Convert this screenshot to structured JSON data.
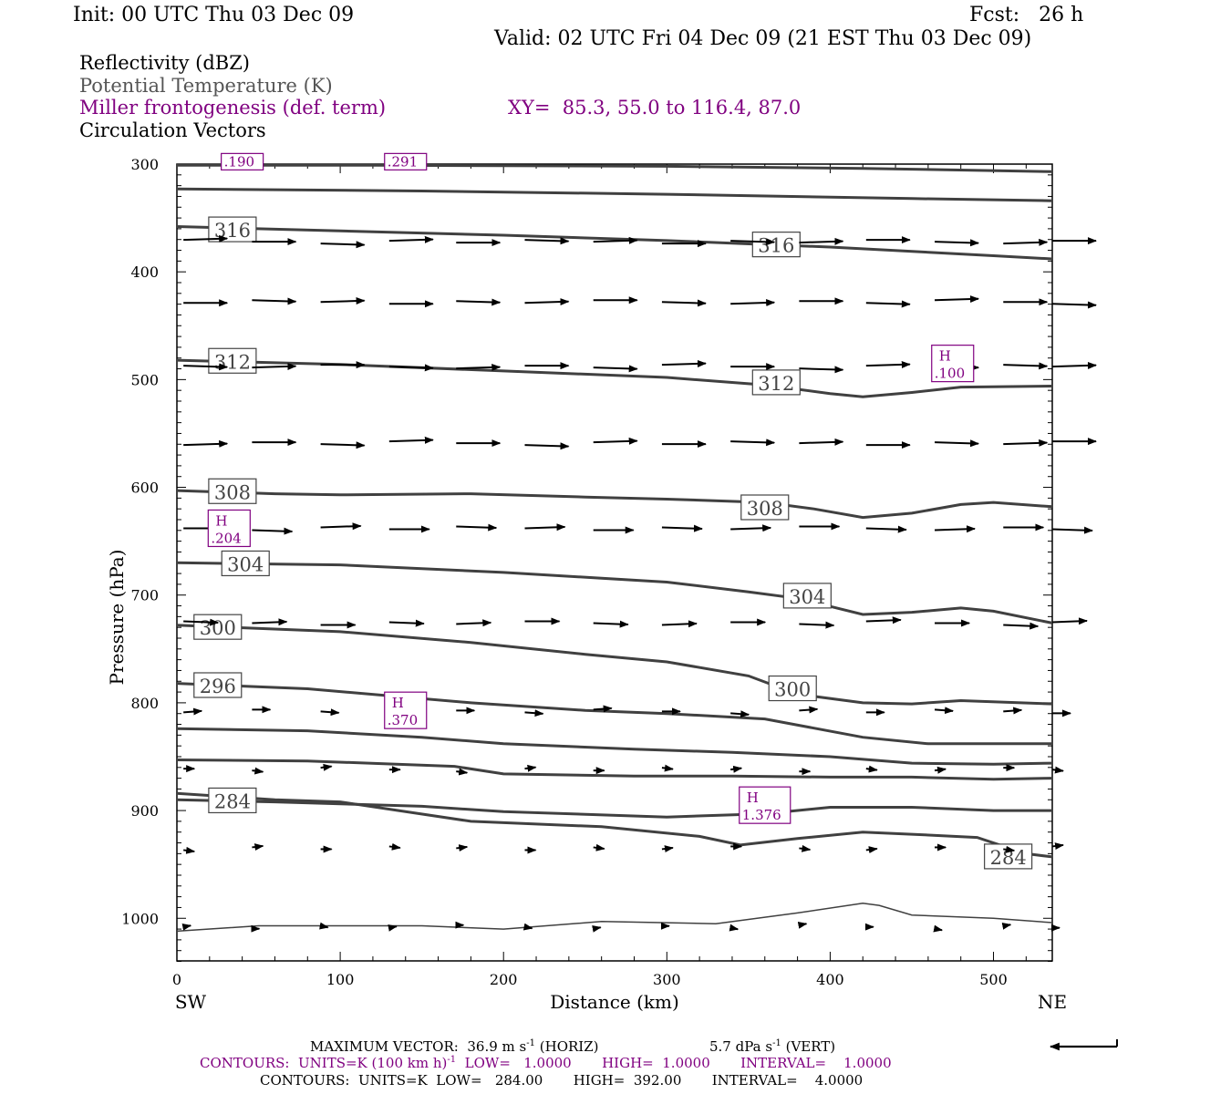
{
  "header": {
    "init": "Init: 00 UTC Thu 03 Dec 09",
    "fcst": "Fcst:   26 h",
    "valid": "Valid: 02 UTC Fri 04 Dec 09 (21 EST Thu 03 Dec 09)"
  },
  "legend": {
    "reflectivity": "Reflectivity (dBZ)",
    "theta": "Potential Temperature (K)",
    "frontogenesis": "Miller frontogenesis (def. term)",
    "xy": "XY=  85.3, 55.0 to 116.4, 87.0",
    "vectors": "Circulation Vectors"
  },
  "footer": {
    "max_vector": "MAXIMUM VECTOR:  36.9 m s",
    "max_vector_horiz": "(HORIZ)",
    "max_vector_vert": "5.7 dPa s",
    "max_vector_vert_tail": "(VERT)",
    "sup_minus1": "-1",
    "contours_front_a": "CONTOURS:  UNITS=K (100 km h)",
    "contours_front_b": "LOW=   1.0000       HIGH=  1.0000       INTERVAL=    1.0000",
    "contours_theta": "CONTOURS:  UNITS=K  LOW=   284.00       HIGH=  392.00       INTERVAL=    4.0000"
  },
  "colors": {
    "theta": "#404040",
    "frontogenesis": "#800080",
    "vectors": "#000000"
  },
  "chart_data": {
    "type": "cross-section",
    "xlabel": "Distance (km)",
    "ylabel": "Pressure (hPa)",
    "xlim": [
      0,
      536
    ],
    "ylim": [
      1040,
      300
    ],
    "x_ticks": [
      0,
      100,
      200,
      300,
      400,
      500
    ],
    "y_ticks": [
      300,
      400,
      500,
      600,
      700,
      800,
      900,
      1000
    ],
    "x_end_labels": {
      "left": "SW",
      "right": "NE"
    },
    "theta_contours": [
      {
        "label": "",
        "points": [
          [
            0,
            301
          ],
          [
            120,
            301
          ],
          [
            300,
            302
          ],
          [
            420,
            304
          ],
          [
            536,
            307
          ]
        ]
      },
      {
        "label": "",
        "points": [
          [
            0,
            323
          ],
          [
            150,
            325
          ],
          [
            300,
            328
          ],
          [
            450,
            332
          ],
          [
            536,
            334
          ]
        ]
      },
      {
        "label": "316",
        "points": [
          [
            0,
            358
          ],
          [
            100,
            362
          ],
          [
            200,
            366
          ],
          [
            300,
            371
          ],
          [
            400,
            377
          ],
          [
            500,
            385
          ],
          [
            536,
            388
          ]
        ]
      },
      {
        "label": "312",
        "points": [
          [
            0,
            482
          ],
          [
            100,
            486
          ],
          [
            200,
            492
          ],
          [
            300,
            498
          ],
          [
            360,
            505
          ],
          [
            400,
            513
          ],
          [
            420,
            516
          ],
          [
            450,
            512
          ],
          [
            480,
            507
          ],
          [
            536,
            506
          ]
        ]
      },
      {
        "label": "308",
        "points": [
          [
            0,
            603
          ],
          [
            60,
            606
          ],
          [
            100,
            607
          ],
          [
            180,
            606
          ],
          [
            250,
            609
          ],
          [
            300,
            611
          ],
          [
            360,
            614
          ],
          [
            390,
            620
          ],
          [
            420,
            628
          ],
          [
            450,
            624
          ],
          [
            480,
            616
          ],
          [
            500,
            614
          ],
          [
            536,
            618
          ]
        ]
      },
      {
        "label": "304",
        "points": [
          [
            0,
            670
          ],
          [
            100,
            672
          ],
          [
            200,
            679
          ],
          [
            300,
            688
          ],
          [
            350,
            697
          ],
          [
            380,
            703
          ],
          [
            420,
            718
          ],
          [
            450,
            716
          ],
          [
            480,
            712
          ],
          [
            500,
            715
          ],
          [
            536,
            726
          ]
        ]
      },
      {
        "label": "300",
        "points": [
          [
            0,
            728
          ],
          [
            100,
            734
          ],
          [
            180,
            744
          ],
          [
            250,
            755
          ],
          [
            300,
            762
          ],
          [
            350,
            775
          ],
          [
            380,
            792
          ],
          [
            420,
            800
          ],
          [
            450,
            801
          ],
          [
            480,
            798
          ],
          [
            536,
            801
          ]
        ]
      },
      {
        "label": "296",
        "points": [
          [
            0,
            782
          ],
          [
            80,
            787
          ],
          [
            180,
            800
          ],
          [
            250,
            807
          ],
          [
            300,
            810
          ],
          [
            360,
            815
          ],
          [
            420,
            832
          ],
          [
            460,
            838
          ],
          [
            536,
            838
          ]
        ]
      },
      {
        "label": "",
        "points": [
          [
            0,
            824
          ],
          [
            80,
            826
          ],
          [
            150,
            832
          ],
          [
            200,
            838
          ],
          [
            280,
            843
          ],
          [
            340,
            846
          ],
          [
            400,
            850
          ],
          [
            450,
            856
          ],
          [
            500,
            857
          ],
          [
            536,
            856
          ]
        ]
      },
      {
        "label": "",
        "points": [
          [
            0,
            853
          ],
          [
            80,
            854
          ],
          [
            170,
            859
          ],
          [
            200,
            866
          ],
          [
            280,
            868
          ],
          [
            340,
            868
          ],
          [
            400,
            869
          ],
          [
            450,
            869
          ],
          [
            500,
            871
          ],
          [
            536,
            870
          ]
        ]
      },
      {
        "label": "284",
        "points": [
          [
            0,
            890
          ],
          [
            60,
            892
          ],
          [
            150,
            896
          ],
          [
            200,
            901
          ],
          [
            300,
            906
          ],
          [
            360,
            903
          ],
          [
            400,
            897
          ],
          [
            450,
            897
          ],
          [
            500,
            900
          ],
          [
            536,
            900
          ]
        ]
      },
      {
        "label": "",
        "points": [
          [
            0,
            884
          ],
          [
            60,
            890
          ],
          [
            100,
            892
          ],
          [
            180,
            910
          ],
          [
            260,
            915
          ],
          [
            320,
            924
          ],
          [
            345,
            932
          ],
          [
            380,
            926
          ],
          [
            420,
            920
          ],
          [
            450,
            922
          ],
          [
            490,
            925
          ],
          [
            520,
            940
          ],
          [
            536,
            943
          ]
        ]
      },
      {
        "label": "",
        "points": [
          [
            0,
            1012
          ],
          [
            50,
            1007
          ],
          [
            150,
            1007
          ],
          [
            200,
            1010
          ],
          [
            260,
            1003
          ],
          [
            330,
            1005
          ],
          [
            380,
            995
          ],
          [
            420,
            986
          ],
          [
            430,
            988
          ],
          [
            450,
            997
          ],
          [
            500,
            1000
          ],
          [
            536,
            1004
          ]
        ]
      }
    ],
    "frontogenesis_maxima": [
      {
        "label": "H",
        "value": ".204",
        "x": 32,
        "p": 638
      },
      {
        "label": "H",
        "value": ".370",
        "x": 140,
        "p": 807
      },
      {
        "label": "H",
        "value": "1.376",
        "x": 360,
        "p": 895
      },
      {
        "label": "H",
        "value": ".100",
        "x": 475,
        "p": 485
      },
      {
        "label": "",
        "value": ".190",
        "x": 40,
        "p": 302
      },
      {
        "label": "",
        "value": ".291",
        "x": 140,
        "p": 302
      }
    ],
    "vectors": {
      "x_positions": [
        4,
        46,
        88,
        130,
        171,
        213,
        255,
        297,
        339,
        381,
        422,
        464,
        506,
        536
      ],
      "levels": [
        {
          "p": 372,
          "u": 24,
          "w": 0
        },
        {
          "p": 428,
          "u": 24,
          "w": 0
        },
        {
          "p": 488,
          "u": 24,
          "w": 0
        },
        {
          "p": 559,
          "u": 24,
          "w": 0
        },
        {
          "p": 638,
          "u": 22,
          "w": 0
        },
        {
          "p": 726,
          "u": 19,
          "w": 0
        },
        {
          "p": 808,
          "u": 10,
          "w": 0
        },
        {
          "p": 862,
          "u": 6,
          "w": 0
        },
        {
          "p": 935,
          "u": 6,
          "w": 0
        },
        {
          "p": 1008,
          "u": 4,
          "w": 0
        }
      ]
    }
  }
}
